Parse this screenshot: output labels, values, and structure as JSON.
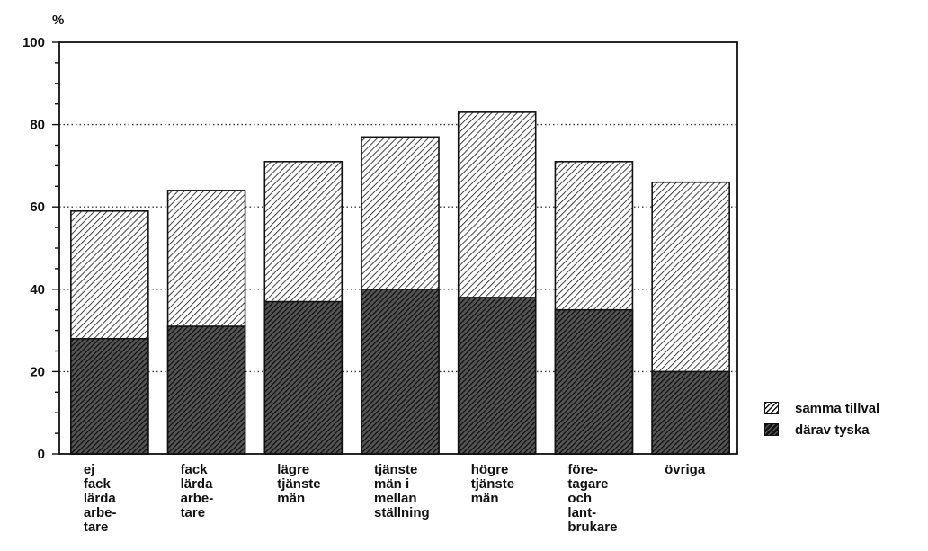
{
  "chart_data": {
    "type": "bar",
    "ylabel": "%",
    "ylim": [
      0,
      100
    ],
    "yticks": [
      "0",
      "20",
      "40",
      "60",
      "80",
      "100"
    ],
    "categories": [
      "ej\nfack\nlärda\narbe-\ntare",
      "fack\nlärda\narbe-\ntare",
      "lägre\ntjänste\nmän",
      "tjänste\nmän i\nmellan\nställning",
      "högre\ntjänste\nmän",
      "före-\ntagare\noch\nlant-\nbrukare",
      "övriga"
    ],
    "series": [
      {
        "name": "samma tillval",
        "values": [
          59,
          64,
          71,
          77,
          83,
          71,
          66
        ]
      },
      {
        "name": "därav tyska",
        "values": [
          28,
          31,
          37,
          40,
          38,
          35,
          20
        ]
      }
    ],
    "grid": "horizontal dotted",
    "legend_position": "right",
    "colors": {
      "ink": "#111111",
      "dark_fill": "#444444"
    }
  }
}
